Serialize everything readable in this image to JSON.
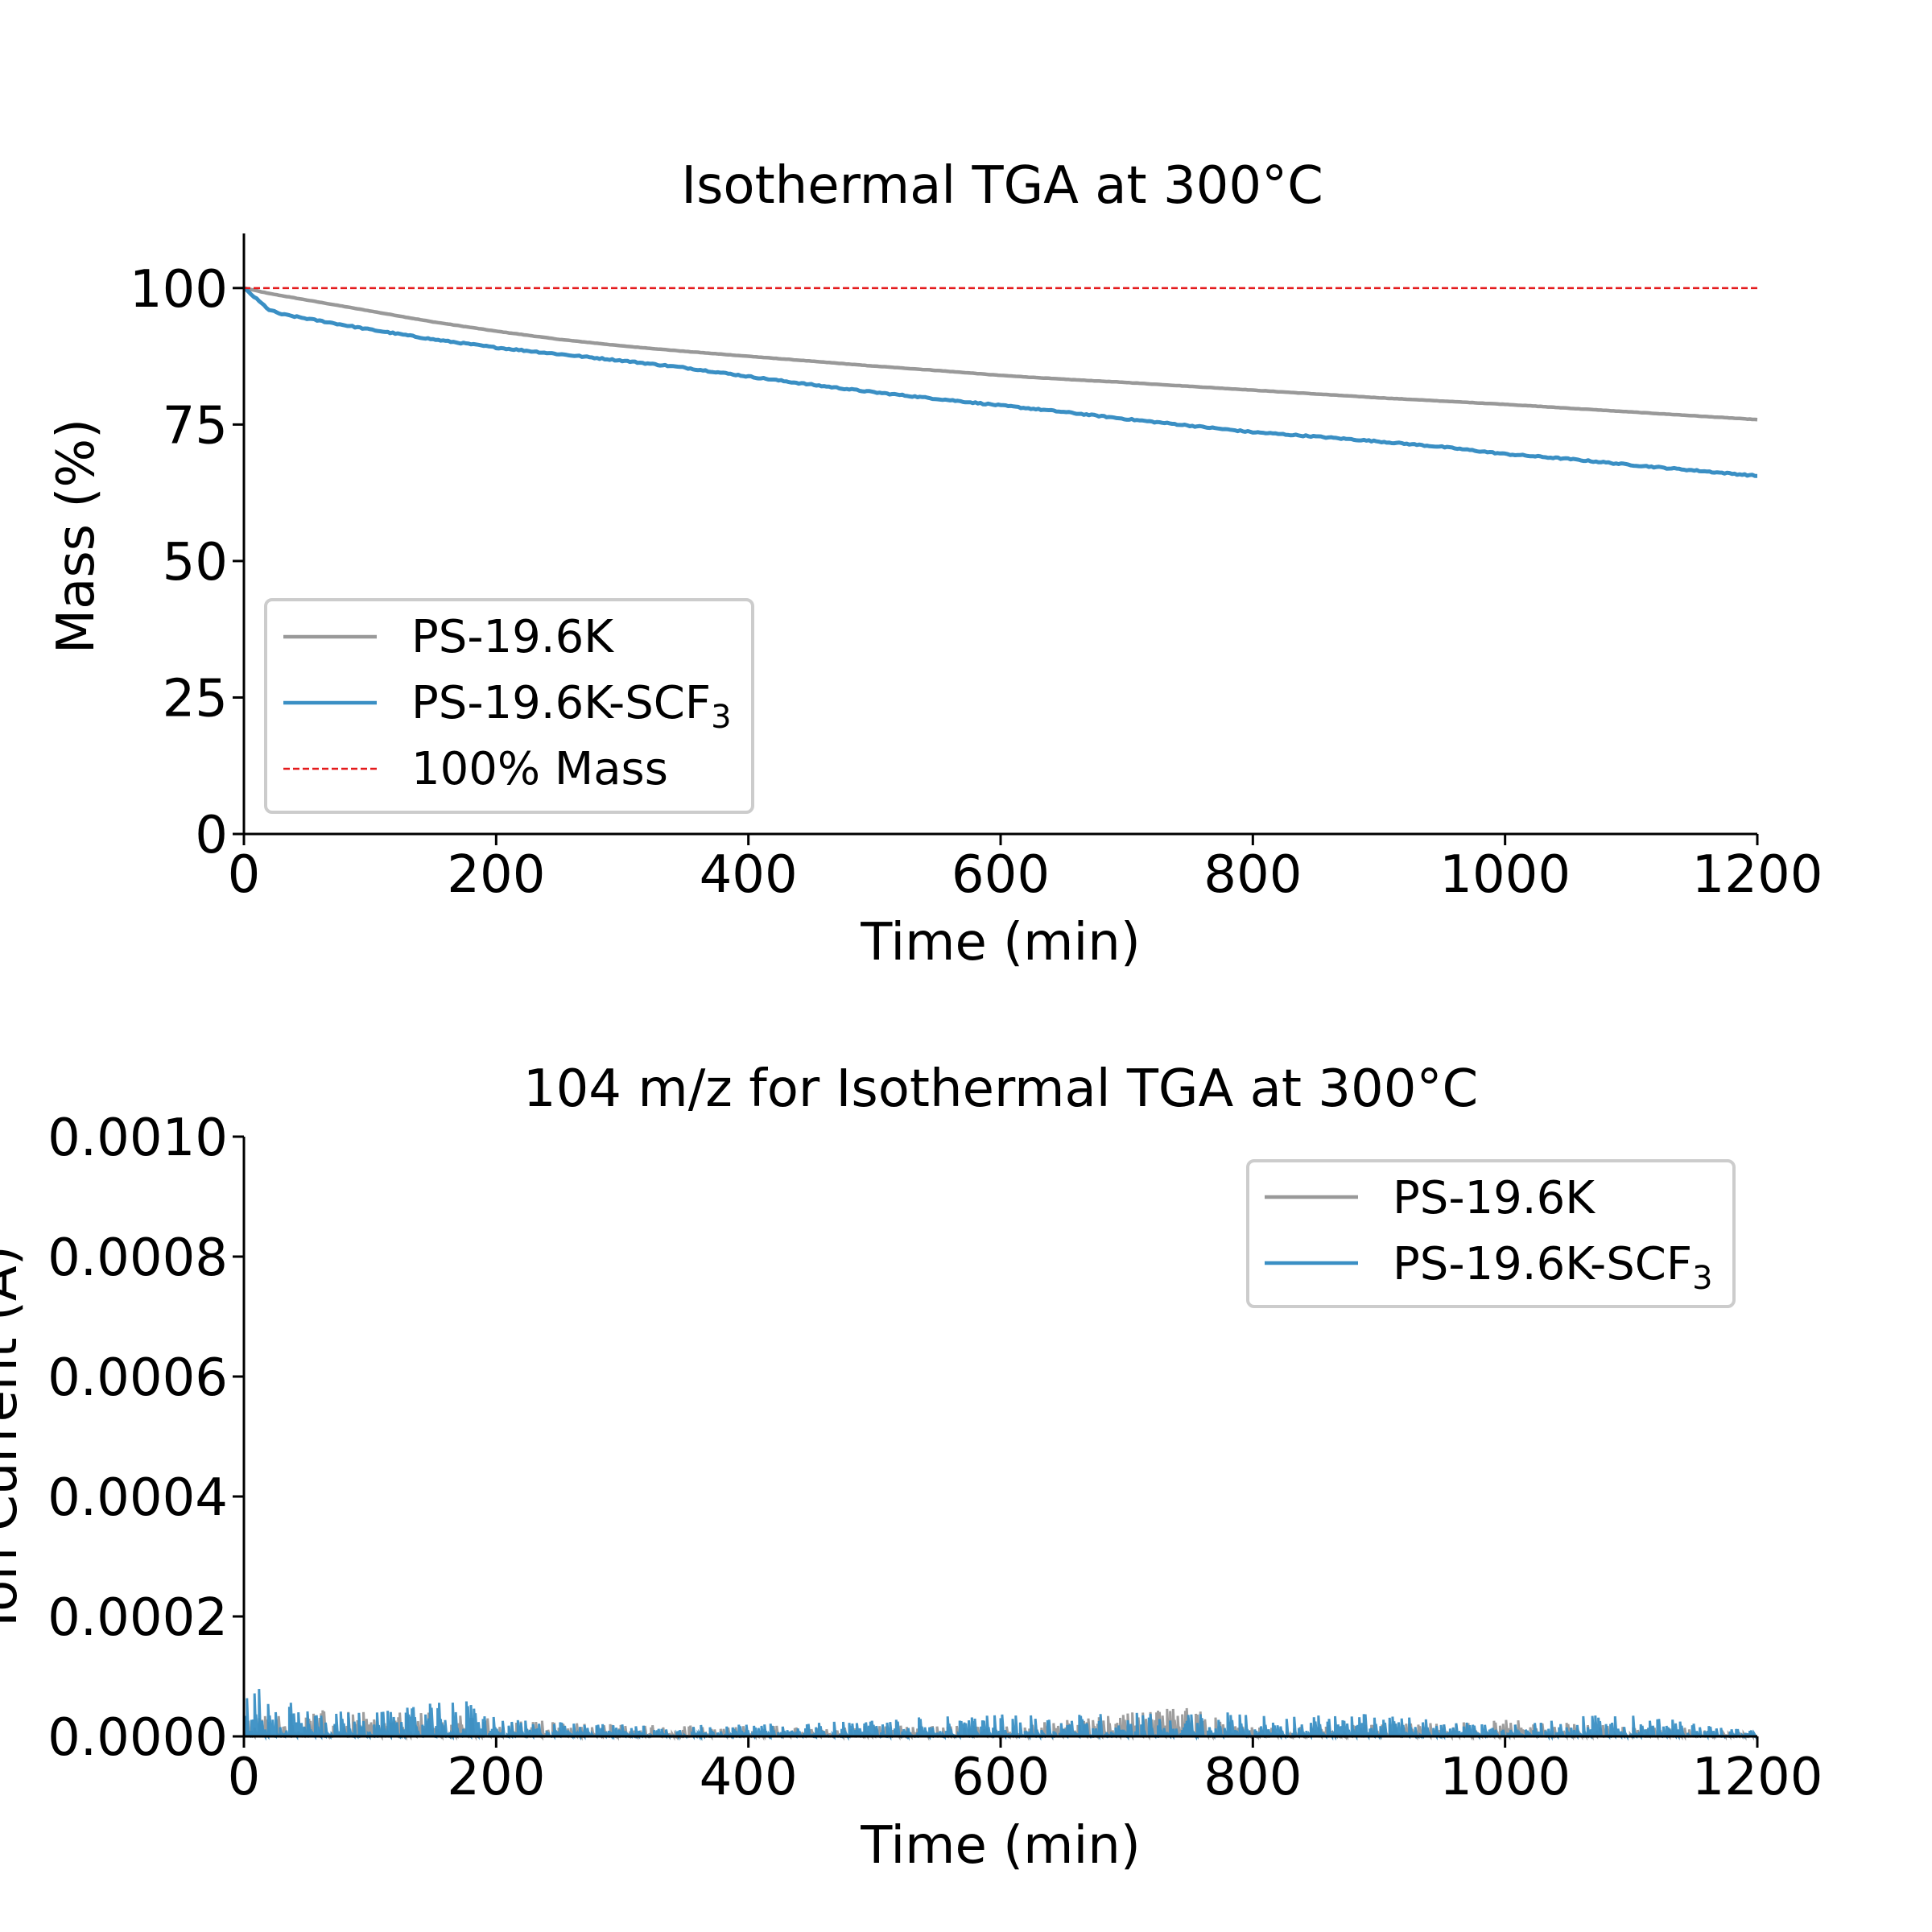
{
  "chart_data": [
    {
      "type": "line",
      "title": "Isothermal TGA at 300°C",
      "xlabel": "Time (min)",
      "ylabel": "Mass (%)",
      "xlim": [
        0,
        1200
      ],
      "ylim": [
        0,
        110
      ],
      "xticks": [
        0,
        200,
        400,
        600,
        800,
        1000,
        1200
      ],
      "xtick_labels": [
        "0",
        "200",
        "400",
        "600",
        "800",
        "1000",
        "1200"
      ],
      "yticks": [
        0,
        25,
        50,
        75,
        100
      ],
      "ytick_labels": [
        "0",
        "25",
        "50",
        "75",
        "100"
      ],
      "grid": false,
      "legend_position": "lower-left",
      "series": [
        {
          "name": "PS-19.6K",
          "color": "#999999",
          "x": [
            0,
            20,
            50,
            100,
            150,
            200,
            250,
            300,
            350,
            400,
            450,
            500,
            550,
            600,
            650,
            700,
            750,
            800,
            850,
            900,
            950,
            1000,
            1050,
            1100,
            1150,
            1200
          ],
          "values": [
            100,
            99.0,
            97.8,
            95.8,
            93.8,
            92.1,
            90.6,
            89.4,
            88.4,
            87.5,
            86.6,
            85.7,
            84.9,
            84.0,
            83.3,
            82.7,
            82.0,
            81.3,
            80.6,
            79.9,
            79.3,
            78.7,
            78.0,
            77.3,
            76.6,
            75.9
          ]
        },
        {
          "name": "PS-19.6K-SCF3",
          "name_main": "PS-19.6K-SCF",
          "name_sub": "3",
          "color": "#3a8fc4",
          "x": [
            0,
            10,
            20,
            30,
            50,
            100,
            150,
            200,
            250,
            300,
            350,
            400,
            450,
            500,
            550,
            600,
            650,
            700,
            750,
            800,
            850,
            900,
            950,
            1000,
            1050,
            1100,
            1150,
            1200
          ],
          "values": [
            100,
            98.0,
            96.0,
            95.2,
            94.4,
            92.4,
            90.6,
            89.1,
            87.9,
            86.7,
            85.4,
            83.8,
            82.3,
            80.9,
            79.7,
            78.5,
            77.3,
            76.0,
            74.8,
            73.6,
            72.8,
            71.9,
            70.9,
            69.6,
            68.7,
            67.6,
            66.6,
            65.6
          ]
        },
        {
          "name": "100% Mass",
          "color": "#e41a1c",
          "style": "dashed",
          "x": [
            0,
            1200
          ],
          "values": [
            100,
            100
          ]
        }
      ]
    },
    {
      "type": "line",
      "title": "104 m/z for Isothermal TGA at 300°C",
      "xlabel": "Time (min)",
      "ylabel": "Ion Current (A)",
      "xlim": [
        0,
        1200
      ],
      "ylim": [
        0,
        0.001
      ],
      "xticks": [
        0,
        200,
        400,
        600,
        800,
        1000,
        1200
      ],
      "xtick_labels": [
        "0",
        "200",
        "400",
        "600",
        "800",
        "1000",
        "1200"
      ],
      "yticks": [
        0,
        0.0002,
        0.0004,
        0.0006,
        0.0008,
        0.001
      ],
      "ytick_labels": [
        "0.0000",
        "0.0002",
        "0.0004",
        "0.0006",
        "0.0008",
        "0.0010"
      ],
      "grid": false,
      "legend_position": "upper-right",
      "series": [
        {
          "name": "PS-19.6K",
          "color": "#999999",
          "style": "noise",
          "x": [
            0,
            50,
            100,
            150,
            200,
            300,
            400,
            600,
            750,
            800,
            1000,
            1200
          ],
          "values": [
            4e-05,
            4.5e-05,
            4e-05,
            4e-05,
            3e-05,
            2e-05,
            1.8e-05,
            1.8e-05,
            5e-05,
            1.5e-05,
            2.8e-05,
            1e-05
          ]
        },
        {
          "name": "PS-19.6K-SCF3",
          "name_main": "PS-19.6K-SCF",
          "name_sub": "3",
          "color": "#3a8fc4",
          "style": "noise",
          "x": [
            0,
            5,
            50,
            100,
            180,
            200,
            300,
            400,
            630,
            870,
            1000,
            1090,
            1200
          ],
          "values": [
            6e-05,
            8.5e-05,
            5e-05,
            4e-05,
            6.5e-05,
            3e-05,
            2e-05,
            2e-05,
            4e-05,
            4e-05,
            2e-05,
            4e-05,
            1e-05
          ]
        }
      ]
    }
  ]
}
